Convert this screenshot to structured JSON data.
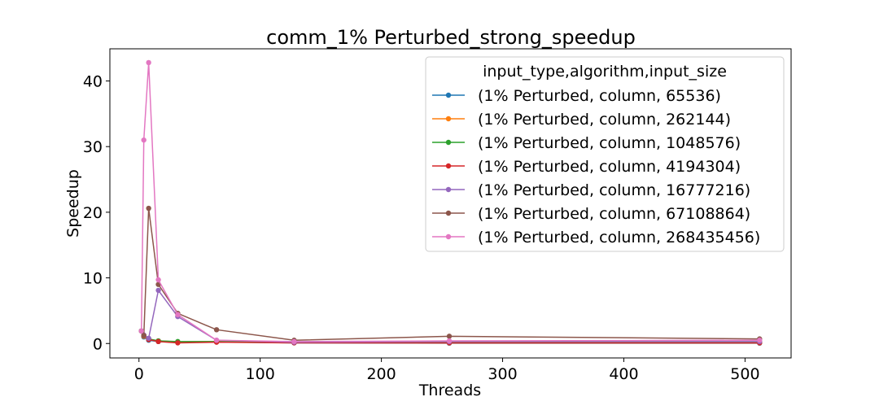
{
  "chart_data": {
    "type": "line",
    "title": "comm_1% Perturbed_strong_speedup",
    "xlabel": "Threads",
    "ylabel": "Speedup",
    "xlim": [
      -24,
      538
    ],
    "ylim": [
      -2.2,
      44.9
    ],
    "xticks": [
      0,
      100,
      200,
      300,
      400,
      500
    ],
    "yticks": [
      0,
      10,
      20,
      30,
      40
    ],
    "grid": false,
    "legend": {
      "title": "input_type,algorithm,input_size",
      "placement": "top-right"
    },
    "series": [
      {
        "name": "(1% Perturbed, column, 65536)",
        "color": "#1f77b4",
        "x": [
          2,
          4,
          8,
          16,
          32,
          64,
          128,
          256,
          512
        ],
        "y": [
          1.9,
          1.0,
          0.5,
          0.3,
          0.2,
          0.25,
          0.1,
          0.05,
          0.05
        ]
      },
      {
        "name": "(1% Perturbed, column, 262144)",
        "color": "#ff7f0e",
        "x": [
          2,
          4,
          8,
          16,
          32,
          64,
          128,
          256,
          512
        ],
        "y": [
          1.9,
          1.1,
          0.6,
          0.4,
          0.25,
          0.3,
          0.15,
          0.1,
          0.1
        ]
      },
      {
        "name": "(1% Perturbed, column, 1048576)",
        "color": "#2ca02c",
        "x": [
          2,
          4,
          8,
          16,
          32,
          64,
          128,
          256,
          512
        ],
        "y": [
          1.9,
          1.2,
          0.7,
          0.4,
          0.3,
          0.3,
          0.2,
          0.15,
          0.15
        ]
      },
      {
        "name": "(1% Perturbed, column, 4194304)",
        "color": "#d62728",
        "x": [
          2,
          4,
          8,
          16,
          32,
          64,
          128,
          256,
          512
        ],
        "y": [
          1.9,
          1.2,
          0.6,
          0.3,
          0.1,
          0.2,
          0.1,
          0.1,
          0.1
        ]
      },
      {
        "name": "(1% Perturbed, column, 16777216)",
        "color": "#9467bd",
        "x": [
          2,
          4,
          8,
          16,
          32,
          64,
          128,
          256,
          512
        ],
        "y": [
          1.9,
          1.3,
          0.8,
          8.1,
          4.1,
          0.5,
          0.2,
          0.3,
          0.3
        ]
      },
      {
        "name": "(1% Perturbed, column, 67108864)",
        "color": "#8c564b",
        "x": [
          2,
          4,
          8,
          16,
          32,
          64,
          128,
          256,
          512
        ],
        "y": [
          1.9,
          1.2,
          20.6,
          9.0,
          4.6,
          2.1,
          0.5,
          1.1,
          0.7
        ]
      },
      {
        "name": "(1% Perturbed, column, 268435456)",
        "color": "#e377c2",
        "x": [
          2,
          4,
          8,
          16,
          32,
          64,
          128,
          256,
          512
        ],
        "y": [
          1.9,
          31.0,
          42.8,
          9.7,
          4.4,
          0.5,
          0.3,
          0.4,
          0.5
        ]
      }
    ]
  }
}
